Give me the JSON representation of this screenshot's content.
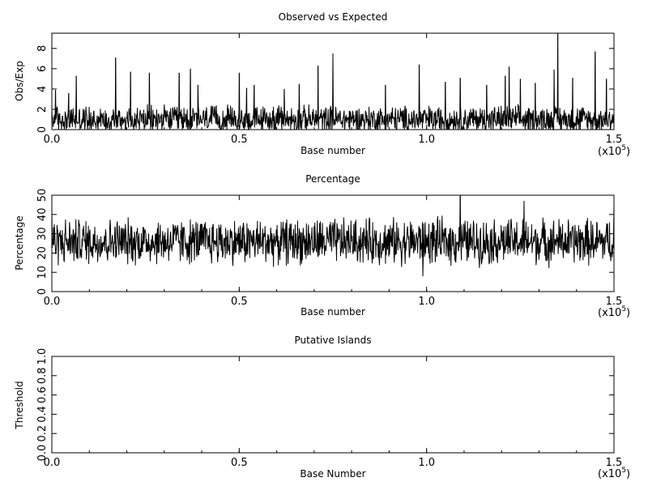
{
  "chart_data": [
    {
      "type": "line",
      "title": "Observed vs Expected",
      "xlabel": "Base number",
      "ylabel": "Obs/Exp",
      "xlim": [
        0,
        150000
      ],
      "ylim": [
        0,
        9.5
      ],
      "x_scale_note": "(x10",
      "x_scale_exp": "5",
      "x_scale_close": ")",
      "xticks": [
        "0.0",
        "0.5",
        "1.0",
        "1.5"
      ],
      "yticks": [
        "0",
        "2",
        "4",
        "6",
        "8"
      ],
      "ytick_values": [
        0,
        2,
        4,
        6,
        8
      ],
      "grid": false,
      "series": [
        {
          "baseline": 1.0,
          "spread": 1.6,
          "x": [
            1000,
            4500,
            6500,
            17000,
            21000,
            26000,
            34000,
            37000,
            39000,
            50000,
            52000,
            54000,
            62000,
            66000,
            71000,
            75000,
            89000,
            98000,
            105000,
            109000,
            116000,
            121000,
            122000,
            125000,
            129000,
            134000,
            135000,
            139000,
            145000,
            148000
          ],
          "y": [
            3.9,
            3.6,
            5.3,
            7.1,
            5.7,
            5.6,
            5.6,
            6.0,
            4.4,
            5.6,
            4.1,
            4.4,
            4.0,
            4.5,
            6.3,
            7.5,
            4.4,
            6.4,
            4.7,
            5.1,
            4.4,
            5.3,
            6.2,
            5.0,
            4.6,
            5.9,
            9.5,
            5.1,
            7.7,
            5.0
          ]
        }
      ]
    },
    {
      "type": "line",
      "title": "Percentage",
      "xlabel": "Base number",
      "ylabel": "Percentage",
      "xlim": [
        0,
        150000
      ],
      "ylim": [
        0,
        50
      ],
      "x_scale_note": "(x10",
      "x_scale_exp": "5",
      "x_scale_close": ")",
      "xticks": [
        "0.0",
        "0.5",
        "1.0",
        "1.5"
      ],
      "yticks": [
        "0",
        "10",
        "20",
        "30",
        "40",
        "50"
      ],
      "ytick_values": [
        0,
        10,
        20,
        30,
        40,
        50
      ],
      "grid": false,
      "series": [
        {
          "baseline": 26,
          "spread": 14,
          "x": [
            0,
            20000,
            40000,
            60000,
            80000,
            99000,
            100000,
            109000,
            110000,
            120000,
            126000,
            135000,
            145000,
            150000
          ],
          "y": [
            44,
            25,
            24,
            26,
            27,
            8,
            26,
            50,
            26,
            30,
            47,
            28,
            22,
            45
          ]
        }
      ]
    },
    {
      "type": "line",
      "title": "Putative Islands",
      "xlabel": "Base Number",
      "ylabel": "Threshold",
      "xlim": [
        0,
        150000
      ],
      "ylim": [
        0,
        1.0
      ],
      "x_scale_note": "(x10",
      "x_scale_exp": "5",
      "x_scale_close": ")",
      "xticks": [
        "0.0",
        "0.5",
        "1.0",
        "1.5"
      ],
      "yticks": [
        "0.0",
        "0.2",
        "0.4",
        "0.6",
        "0.8",
        "1.0"
      ],
      "ytick_values": [
        0,
        0.2,
        0.4,
        0.6,
        0.8,
        1.0
      ],
      "grid": false,
      "series": []
    }
  ]
}
